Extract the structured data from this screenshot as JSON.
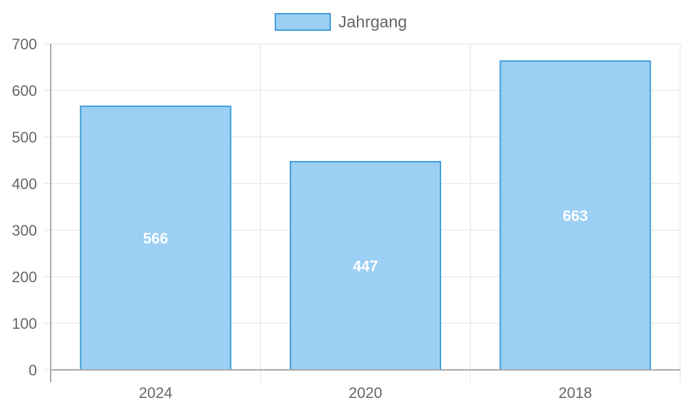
{
  "chart_data": {
    "type": "bar",
    "title": "",
    "xlabel": "",
    "ylabel": "",
    "categories": [
      "2024",
      "2020",
      "2018"
    ],
    "series": [
      {
        "name": "Jahrgang",
        "values": [
          566,
          447,
          663
        ]
      }
    ],
    "ylim": [
      0,
      700
    ],
    "yticks": [
      0,
      100,
      200,
      300,
      400,
      500,
      600,
      700
    ],
    "legend_position": "top-center",
    "grid": true,
    "colors": {
      "bar_fill": "#9BCFF4",
      "bar_stroke": "#3E9DDB",
      "grid": "#e0e0e0",
      "axis": "#a8a8a8",
      "text": "#666666",
      "data_label": "#ffffff"
    }
  }
}
